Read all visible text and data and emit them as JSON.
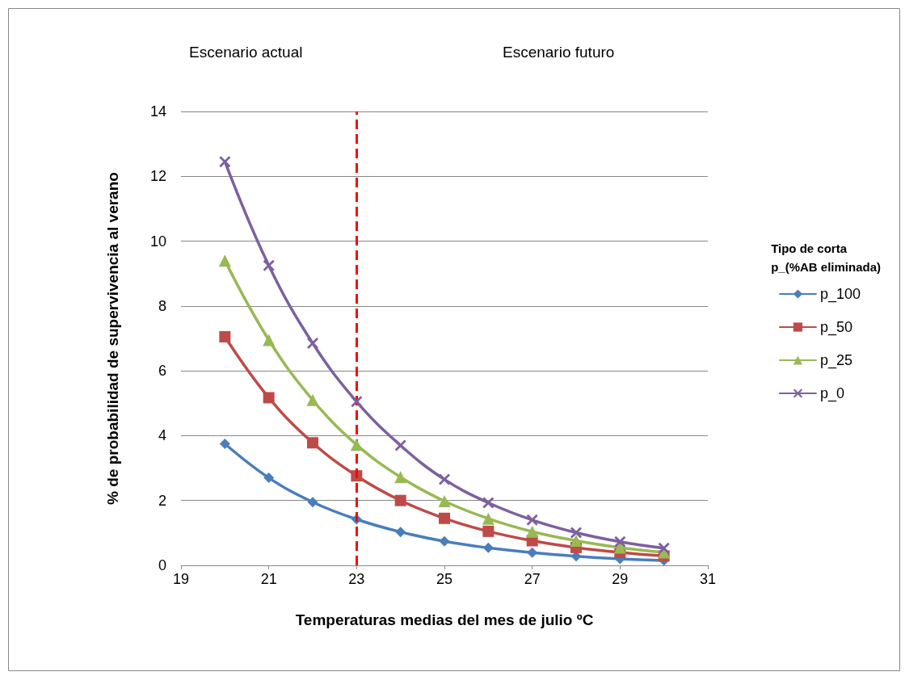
{
  "chart_data": {
    "type": "line",
    "xlabel": "Temperaturas medias del mes de julio ºC",
    "ylabel": "% de probabilidad de supervivencia al verano",
    "legend_title": "Tipo de corta\np_(%AB eliminada)",
    "x": [
      20,
      21,
      22,
      23,
      24,
      25,
      26,
      27,
      28,
      29,
      30
    ],
    "series": [
      {
        "name": "p_100",
        "color": "#4a7ebb",
        "marker": "diamond",
        "values": [
          3.75,
          2.7,
          1.95,
          1.42,
          1.03,
          0.74,
          0.54,
          0.39,
          0.28,
          0.2,
          0.15
        ]
      },
      {
        "name": "p_50",
        "color": "#be4b48",
        "marker": "square",
        "values": [
          7.05,
          5.17,
          3.78,
          2.76,
          2.0,
          1.45,
          1.05,
          0.76,
          0.55,
          0.4,
          0.29
        ]
      },
      {
        "name": "p_25",
        "color": "#98b954",
        "marker": "triangle",
        "values": [
          9.4,
          6.95,
          5.1,
          3.72,
          2.72,
          1.98,
          1.44,
          1.04,
          0.76,
          0.55,
          0.4
        ]
      },
      {
        "name": "p_0",
        "color": "#7d60a0",
        "marker": "cross",
        "values": [
          12.45,
          9.25,
          6.85,
          5.05,
          3.7,
          2.65,
          1.93,
          1.4,
          1.01,
          0.73,
          0.53
        ]
      }
    ],
    "xlim": [
      19,
      31
    ],
    "xticks": [
      19,
      21,
      23,
      25,
      27,
      29,
      31
    ],
    "ylim": [
      0,
      14
    ],
    "yticks": [
      0,
      2,
      4,
      6,
      8,
      10,
      12,
      14
    ],
    "ref_lines": [
      {
        "axis": "x",
        "value": 23,
        "color": "#ff0000",
        "line_style": "dashed"
      }
    ],
    "annotations": [
      "Escenario actual",
      "Escenario futuro"
    ],
    "grid": "y",
    "legend": "right",
    "line_style": "solid"
  }
}
